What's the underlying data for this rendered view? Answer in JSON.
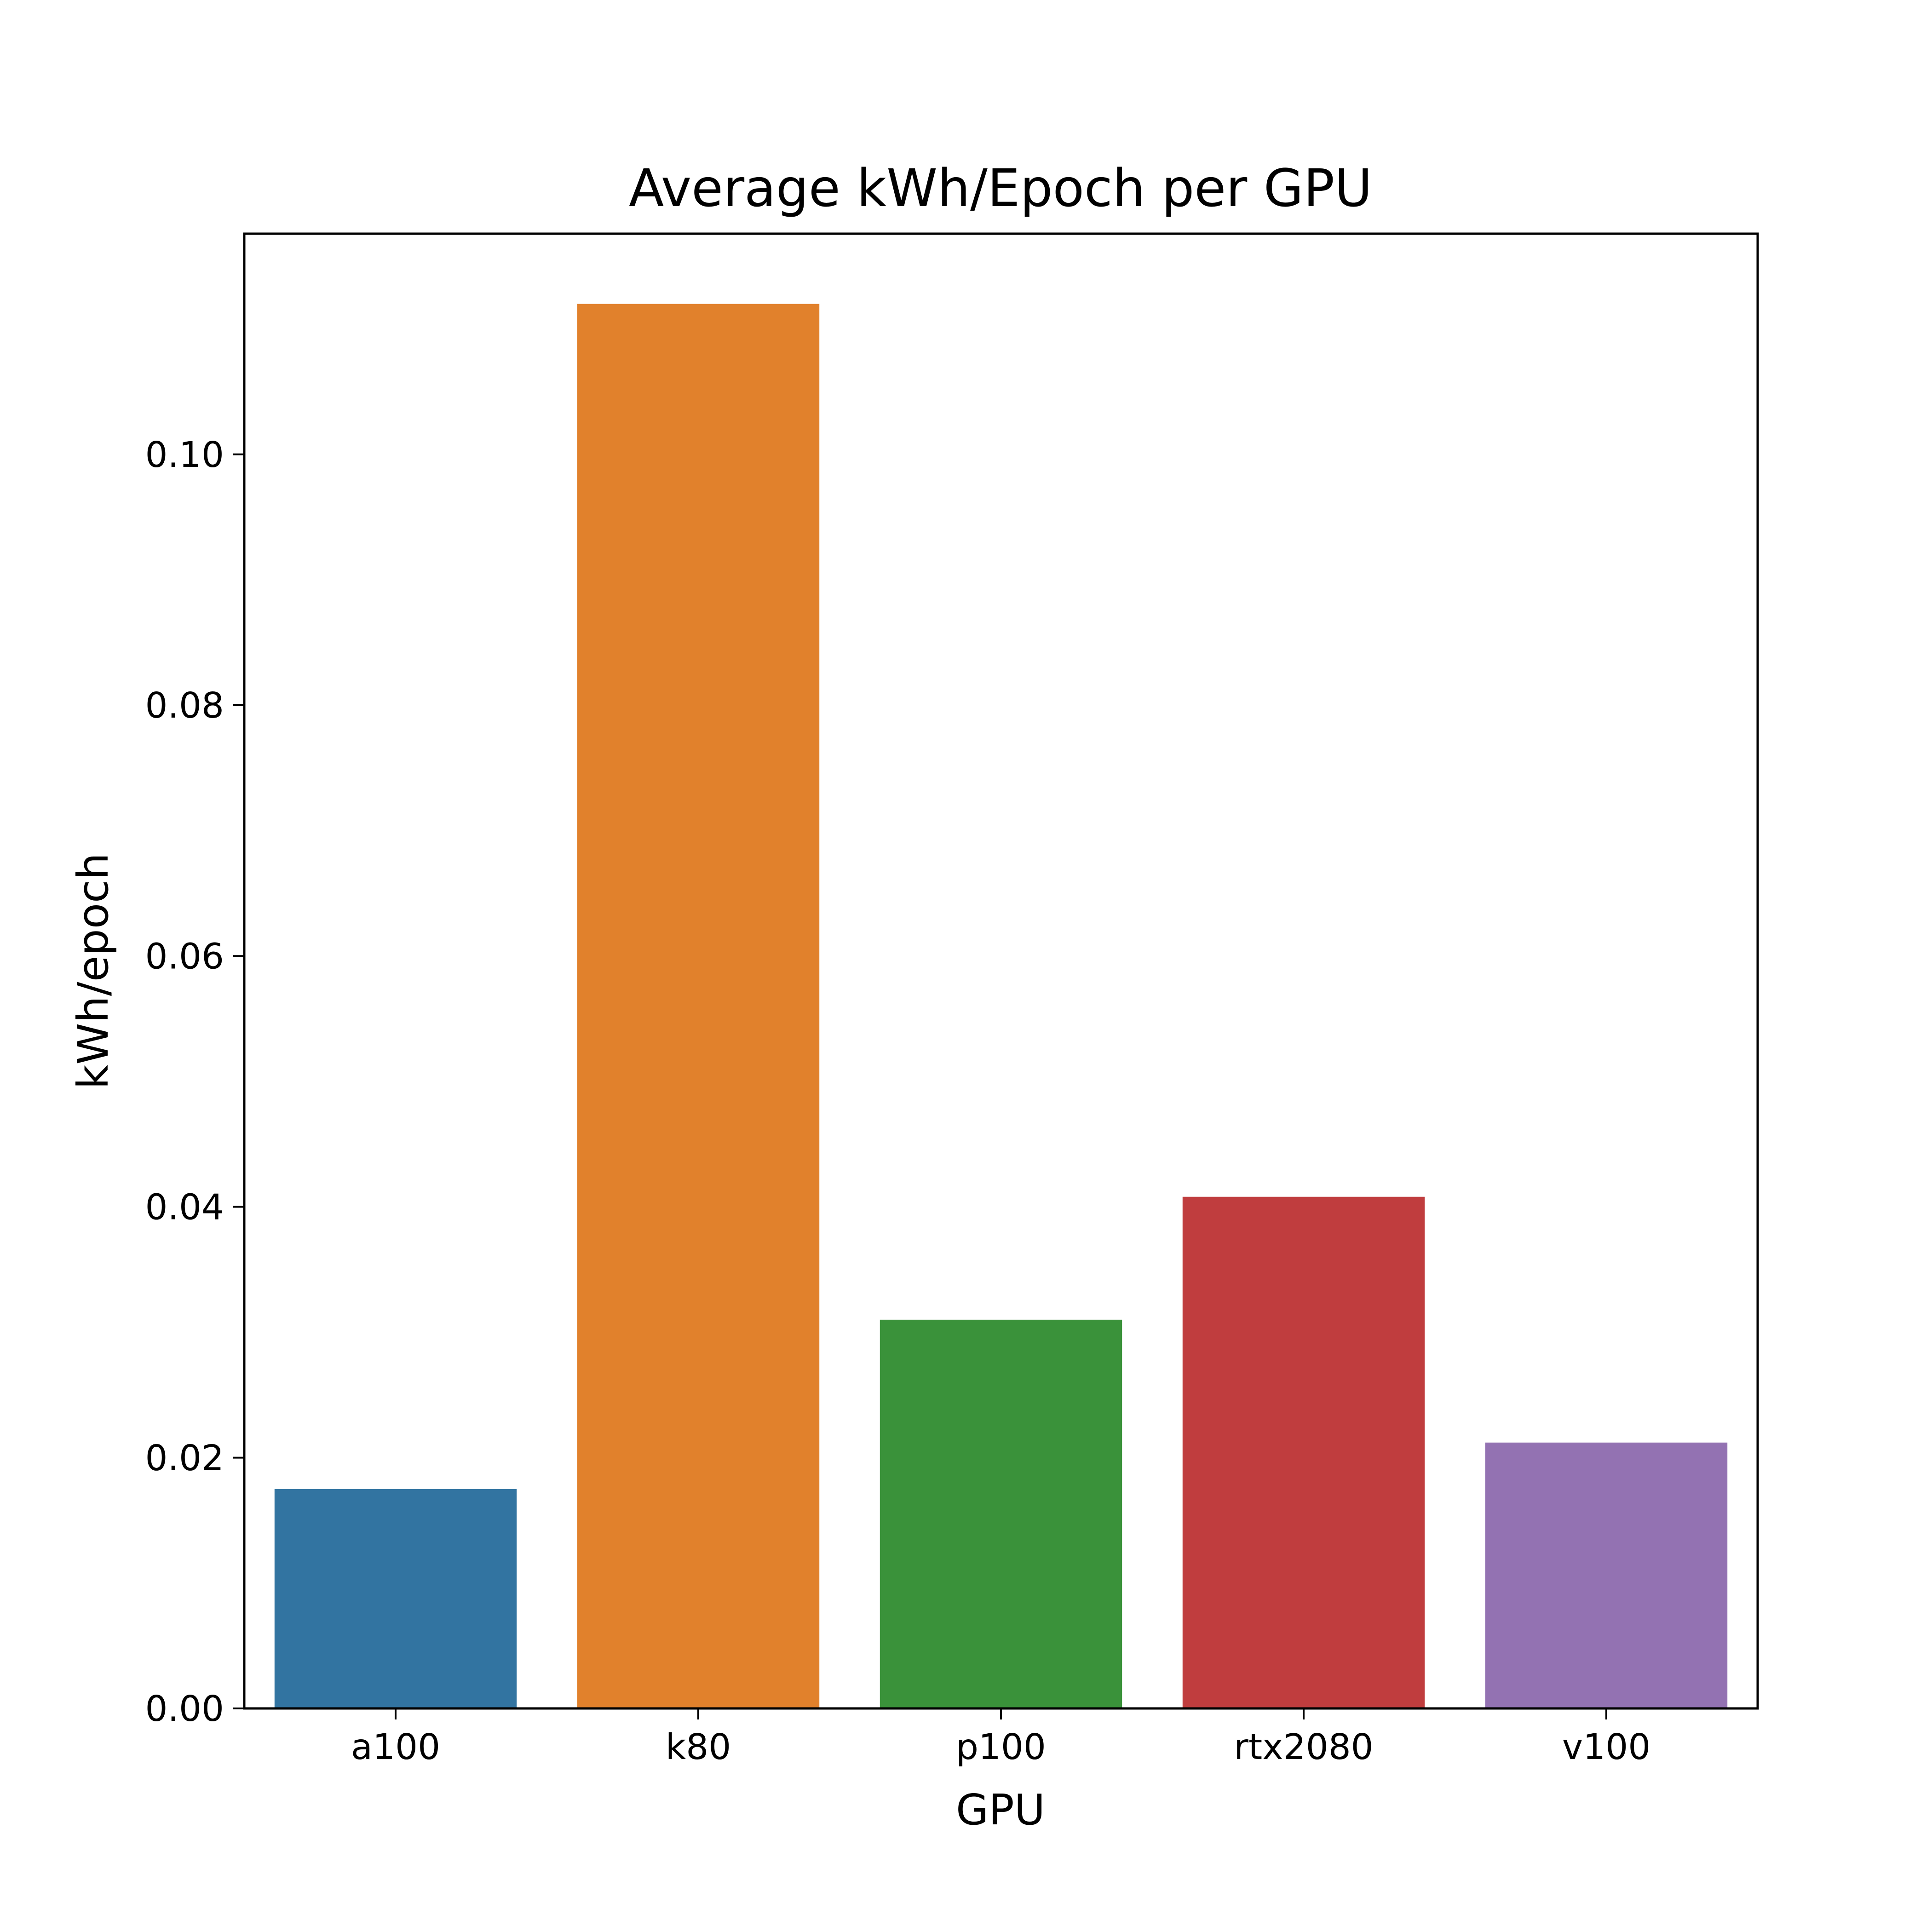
{
  "chart_data": {
    "type": "bar",
    "title": "Average kWh/Epoch per GPU",
    "xlabel": "GPU",
    "ylabel": "kWh/epoch",
    "categories": [
      "a100",
      "k80",
      "p100",
      "rtx2080",
      "v100"
    ],
    "values": [
      0.0175,
      0.112,
      0.031,
      0.0408,
      0.0212
    ],
    "colors": [
      "#3274a1",
      "#e1812c",
      "#3a923a",
      "#c03d3e",
      "#9372b2"
    ],
    "ylim": [
      0,
      0.1176
    ],
    "yticks": [
      0.0,
      0.02,
      0.04,
      0.06,
      0.08,
      0.1
    ],
    "ytick_labels": [
      "0.00",
      "0.02",
      "0.04",
      "0.06",
      "0.08",
      "0.10"
    ],
    "grid": false,
    "legend": "none"
  }
}
